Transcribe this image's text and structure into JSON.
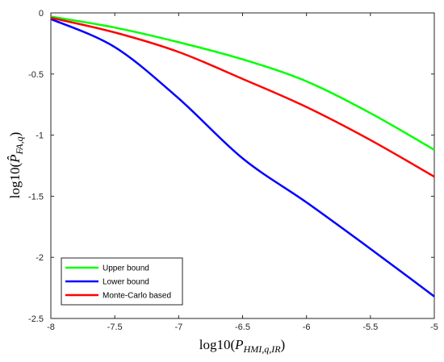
{
  "chart_data": {
    "type": "line",
    "title": "",
    "xlabel": "log10(P_{HMI,q,IR})",
    "ylabel": "log10(P̂_{FA,q})",
    "xlabel_parts": {
      "base": "log10(",
      "sym": "P",
      "sub": "HMI,q,IR",
      "close": ")"
    },
    "ylabel_parts": {
      "base": "log10(",
      "sym": "P̂",
      "sub": "FA,q",
      "close": ")"
    },
    "xlim": [
      -8,
      -5
    ],
    "ylim": [
      -2.5,
      0
    ],
    "xticks": [
      -8,
      -7.5,
      -7,
      -6.5,
      -6,
      -5.5,
      -5
    ],
    "xtick_labels": [
      "-8",
      "-7.5",
      "-7",
      "-6.5",
      "-6",
      "-5.5",
      "-5"
    ],
    "yticks": [
      0,
      -0.5,
      -1,
      -1.5,
      -2,
      -2.5
    ],
    "ytick_labels": [
      "0",
      "-0.5",
      "-1",
      "-1.5",
      "-2",
      "-2.5"
    ],
    "grid": false,
    "legend_position": "bottom-left",
    "x": [
      -8,
      -7.5,
      -7,
      -6.5,
      -6,
      -5.5,
      -5
    ],
    "series": [
      {
        "name": "Upper bound",
        "color": "#00ff00",
        "values": [
          -0.03,
          -0.12,
          -0.24,
          -0.38,
          -0.56,
          -0.82,
          -1.12
        ]
      },
      {
        "name": "Lower bound",
        "color": "#0000ff",
        "values": [
          -0.05,
          -0.28,
          -0.7,
          -1.19,
          -1.55,
          -1.93,
          -2.32
        ]
      },
      {
        "name": "Monte-Carlo based",
        "color": "#ff0000",
        "values": [
          -0.04,
          -0.16,
          -0.32,
          -0.54,
          -0.77,
          -1.04,
          -1.34
        ]
      }
    ]
  }
}
